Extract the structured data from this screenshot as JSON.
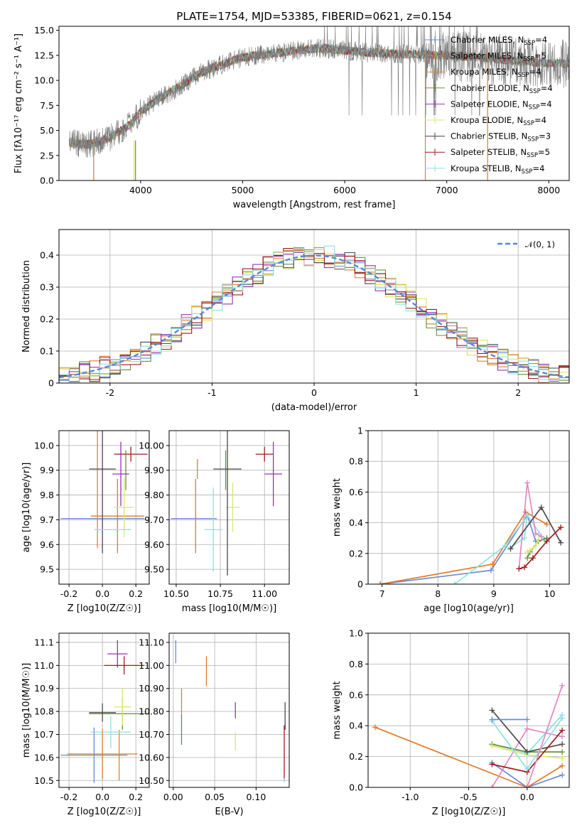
{
  "colors": [
    "#6a8bd6",
    "#e07a2c",
    "#d8882a",
    "#6b8f3a",
    "#9b30b8",
    "#d8e86a",
    "#4a4a4a",
    "#a31a1a",
    "#8fe0e0"
  ],
  "chart_data": [
    {
      "id": "spectrum",
      "type": "line",
      "title": "PLATE=1754, MJD=53385, FIBERID=0621, z=0.154",
      "xlabel": "wavelength [Angstrom, rest frame]",
      "ylabel": "Flux [fλ10⁻¹⁷ erg cm⁻² s⁻¹ A⁻¹]",
      "xlim": [
        3200,
        8200
      ],
      "ylim": [
        0,
        15.4
      ],
      "xticks": [
        4000,
        5000,
        6000,
        7000,
        8000
      ],
      "yticks": [
        0.0,
        2.5,
        5.0,
        7.5,
        10.0,
        12.5,
        15.0
      ],
      "grid": false,
      "legend_position": "upper right",
      "legend": [
        "Chabrier MILES, N_SSP=4",
        "Salpeter MILES, N_SSP=5",
        "Kroupa MILES, N_SSP=4",
        "Chabrier ELODIE, N_SSP=4",
        "Salpeter ELODIE, N_SSP=4",
        "Kroupa ELODIE, N_SSP=4",
        "Chabrier STELIB, N_SSP=3",
        "Salpeter STELIB, N_SSP=5",
        "Kroupa STELIB, N_SSP=4"
      ],
      "data_continuum": {
        "x": [
          3300,
          3500,
          3700,
          3900,
          4000,
          4200,
          4400,
          4600,
          4800,
          5000,
          5200,
          5400,
          5600,
          5800,
          6000,
          6200,
          6400,
          6600,
          6800,
          7000,
          7200,
          7400,
          7600,
          7800,
          8000
        ],
        "y": [
          3.8,
          3.6,
          4.3,
          5.6,
          6.9,
          8.3,
          9.5,
          10.8,
          11.6,
          12.3,
          12.6,
          12.8,
          13.1,
          13.2,
          13.0,
          12.8,
          12.7,
          12.6,
          12.6,
          12.5,
          12.4,
          12.2,
          12.0,
          11.9,
          11.7
        ]
      }
    },
    {
      "id": "residuals",
      "type": "histogram",
      "xlabel": "(data-model)/error",
      "ylabel": "Normed distribution",
      "xlim": [
        -2.5,
        2.5
      ],
      "ylim": [
        0,
        0.48
      ],
      "xticks": [
        -2,
        -1,
        0,
        1,
        2
      ],
      "yticks": [
        0.0,
        0.1,
        0.2,
        0.3,
        0.4
      ],
      "grid": true,
      "legend_position": "upper right",
      "legend": [
        "𝒩(0, 1)"
      ],
      "bin_width": 0.1,
      "gaussian": {
        "mean": 0,
        "sigma": 1
      }
    },
    {
      "id": "age-vs-Z",
      "type": "errorbar",
      "xlabel": "Z [log10(Z/Z☉)]",
      "ylabel": "age  [log10(age/yr)]",
      "xlim": [
        -0.26,
        0.28
      ],
      "ylim": [
        9.44,
        10.06
      ],
      "xticks": [
        -0.2,
        0.0,
        0.2
      ],
      "yticks": [
        9.5,
        9.6,
        9.7,
        9.8,
        9.9,
        10.0
      ],
      "grid": true,
      "points": [
        {
          "x": 0.0,
          "y": 9.705,
          "xerr": 0.25,
          "yerr": 0.0
        },
        {
          "x": 0.09,
          "y": 9.715,
          "xerr": 0.16,
          "yerr": 0.15
        },
        {
          "x": -0.03,
          "y": 9.905,
          "xerr": 0.0,
          "yerr": 0.32
        },
        {
          "x": 0.14,
          "y": 9.9,
          "xerr": 0.0,
          "yerr": 0.08
        },
        {
          "x": 0.11,
          "y": 9.885,
          "xerr": 0.05,
          "yerr": 0.13
        },
        {
          "x": 0.13,
          "y": 9.75,
          "xerr": 0.06,
          "yerr": 0.12
        },
        {
          "x": 0.0,
          "y": 9.905,
          "xerr": 0.08,
          "yerr": 0.34
        },
        {
          "x": 0.17,
          "y": 9.965,
          "xerr": 0.1,
          "yerr": 0.03
        },
        {
          "x": 0.06,
          "y": 9.66,
          "xerr": 0.11,
          "yerr": 0.0
        }
      ]
    },
    {
      "id": "age-vs-mass",
      "type": "errorbar",
      "xlabel": "mass [log10(M/M☉)]",
      "ylabel": "",
      "xlim": [
        10.46,
        11.14
      ],
      "ylim": [
        9.44,
        10.06
      ],
      "xticks": [
        10.5,
        10.75,
        11.0
      ],
      "yticks": [
        9.5,
        9.6,
        9.7,
        9.8,
        9.9,
        10.0
      ],
      "grid": true,
      "points": [
        {
          "x": 10.6,
          "y": 9.705,
          "xerr": 0.13,
          "yerr": 0.0
        },
        {
          "x": 10.61,
          "y": 9.715,
          "xerr": 0.0,
          "yerr": 0.15
        },
        {
          "x": 10.62,
          "y": 9.905,
          "xerr": 0.0,
          "yerr": 0.04
        },
        {
          "x": 10.78,
          "y": 9.9,
          "xerr": 0.0,
          "yerr": 0.08
        },
        {
          "x": 11.05,
          "y": 9.885,
          "xerr": 0.05,
          "yerr": 0.13
        },
        {
          "x": 10.82,
          "y": 9.75,
          "xerr": 0.04,
          "yerr": 0.1
        },
        {
          "x": 10.79,
          "y": 9.905,
          "xerr": 0.08,
          "yerr": 0.43
        },
        {
          "x": 11.0,
          "y": 9.965,
          "xerr": 0.05,
          "yerr": 0.03
        },
        {
          "x": 10.71,
          "y": 9.66,
          "xerr": 0.05,
          "yerr": 0.17
        }
      ]
    },
    {
      "id": "sfh-age",
      "type": "line",
      "xlabel": "age  [log10(age/yr)]",
      "ylabel": "mass weight",
      "xlim": [
        6.75,
        10.35
      ],
      "ylim": [
        0,
        1
      ],
      "xticks": [
        7,
        8,
        9,
        10
      ],
      "yticks": [
        0.0,
        0.2,
        0.4,
        0.6,
        0.8,
        1.0
      ],
      "grid": true,
      "series": [
        {
          "x": [
            6.97,
            8.95,
            9.6,
            9.75
          ],
          "y": [
            0.0,
            0.09,
            0.45,
            0.28
          ]
        },
        {
          "x": [
            6.97,
            8.98,
            9.57,
            9.95
          ],
          "y": [
            0.0,
            0.13,
            0.47,
            0.39
          ]
        },
        {
          "x": [
            9.3,
            9.55,
            9.6,
            9.9
          ],
          "y": [
            0.24,
            0.3,
            0.45,
            0.29
          ]
        },
        {
          "x": [
            9.6,
            9.65,
            9.8,
            9.95
          ],
          "y": [
            0.17,
            0.21,
            0.28,
            0.3
          ]
        },
        {
          "x": [
            9.45,
            9.6,
            9.75,
            9.85
          ],
          "y": [
            0.1,
            0.66,
            0.33,
            0.31
          ]
        },
        {
          "x": [
            9.6,
            9.65,
            9.75,
            9.8
          ],
          "y": [
            0.21,
            0.22,
            0.25,
            0.29
          ]
        },
        {
          "x": [
            9.3,
            9.85,
            10.2
          ],
          "y": [
            0.23,
            0.5,
            0.27
          ]
        },
        {
          "x": [
            9.45,
            9.55,
            9.7,
            9.95,
            10.2
          ],
          "y": [
            0.1,
            0.11,
            0.17,
            0.28,
            0.37
          ]
        },
        {
          "x": [
            8.3,
            9.2,
            9.55
          ],
          "y": [
            0.0,
            0.25,
            0.42
          ]
        }
      ]
    },
    {
      "id": "mass-vs-Z",
      "type": "errorbar",
      "xlabel": "Z [log10(Z/Z☉)]",
      "ylabel": "mass [log10(M/M☉)]",
      "xlim": [
        -0.26,
        0.28
      ],
      "ylim": [
        10.47,
        11.14
      ],
      "xticks": [
        -0.2,
        0.0,
        0.2
      ],
      "yticks": [
        10.5,
        10.6,
        10.7,
        10.8,
        10.9,
        11.0,
        11.1
      ],
      "grid": true,
      "points": [
        {
          "x": -0.05,
          "y": 10.61,
          "xerr": 0.2,
          "yerr": 0.12
        },
        {
          "x": 0.0,
          "y": 10.615,
          "xerr": 0.21,
          "yerr": 0.11
        },
        {
          "x": 0.1,
          "y": 10.61,
          "xerr": 0.0,
          "yerr": 0.11
        },
        {
          "x": 0.12,
          "y": 10.79,
          "xerr": 0.2,
          "yerr": 0.07
        },
        {
          "x": 0.09,
          "y": 11.05,
          "xerr": 0.06,
          "yerr": 0.06
        },
        {
          "x": 0.12,
          "y": 10.82,
          "xerr": 0.05,
          "yerr": 0.08
        },
        {
          "x": 0.0,
          "y": 10.795,
          "xerr": 0.08,
          "yerr": 0.04
        },
        {
          "x": 0.13,
          "y": 11.0,
          "xerr": 0.12,
          "yerr": 0.04
        },
        {
          "x": 0.05,
          "y": 10.71,
          "xerr": 0.12,
          "yerr": 0.07
        }
      ]
    },
    {
      "id": "mass-vs-EBV",
      "type": "errorbar",
      "xlabel": "E(B-V)",
      "ylabel": "",
      "xlim": [
        -0.005,
        0.14
      ],
      "ylim": [
        10.47,
        11.14
      ],
      "xticks": [
        0.0,
        0.05,
        0.1
      ],
      "yticks": [
        10.5,
        10.6,
        10.7,
        10.8,
        10.9,
        11.0,
        11.1
      ],
      "grid": true,
      "points": [
        {
          "x": 0.003,
          "y": 11.06,
          "xerr": 0.0,
          "yerr": 0.05
        },
        {
          "x": 0.04,
          "y": 10.975,
          "xerr": 0.0,
          "yerr": 0.065
        },
        {
          "x": 0.01,
          "y": 10.84,
          "xerr": 0.0,
          "yerr": 0.06
        },
        {
          "x": 0.01,
          "y": 10.72,
          "xerr": 0.0,
          "yerr": 0.065
        },
        {
          "x": 0.075,
          "y": 10.805,
          "xerr": 0.0,
          "yerr": 0.035
        },
        {
          "x": 0.075,
          "y": 10.67,
          "xerr": 0.0,
          "yerr": 0.04
        },
        {
          "x": 0.135,
          "y": 10.78,
          "xerr": 0.0,
          "yerr": 0.06
        },
        {
          "x": 0.134,
          "y": 10.62,
          "xerr": 0.0,
          "yerr": 0.12
        },
        {
          "x": 0.134,
          "y": 10.5,
          "xerr": 0.0,
          "yerr": 0.01
        }
      ]
    },
    {
      "id": "sfh-Z",
      "type": "line",
      "xlabel": "Z [log10(Z/Z☉)]",
      "ylabel": "mass weight",
      "xlim": [
        -1.36,
        0.36
      ],
      "ylim": [
        0,
        1
      ],
      "xticks": [
        -1.0,
        -0.5,
        0.0
      ],
      "yticks": [
        0.0,
        0.2,
        0.4,
        0.6,
        0.8,
        1.0
      ],
      "grid": true,
      "series": [
        {
          "x": [
            -0.3,
            0.0,
            0.3
          ],
          "y": [
            0.16,
            0.0,
            0.08
          ]
        },
        {
          "x": [
            -1.3,
            0.0,
            0.3
          ],
          "y": [
            0.39,
            0.0,
            0.14
          ]
        },
        {
          "x": [
            -0.3,
            0.0,
            0.3
          ],
          "y": [
            0.28,
            0.22,
            0.47
          ]
        },
        {
          "x": [
            -0.3,
            0.0,
            0.3
          ],
          "y": [
            0.28,
            0.23,
            0.23
          ]
        },
        {
          "x": [
            -0.3,
            0.0,
            0.3
          ],
          "y": [
            0.0,
            0.38,
            0.33
          ]
        },
        {
          "x": [
            -0.3,
            0.0,
            0.3
          ],
          "y": [
            0.27,
            0.21,
            0.19
          ]
        },
        {
          "x": [
            -0.3,
            0.0,
            0.3
          ],
          "y": [
            0.5,
            0.23,
            0.28
          ]
        },
        {
          "x": [
            -0.3,
            0.0,
            0.3
          ],
          "y": [
            0.15,
            0.1,
            0.37
          ]
        },
        {
          "x": [
            -0.3,
            0.0,
            0.3
          ],
          "y": [
            0.43,
            0.12,
            0.45
          ]
        },
        {
          "x": [
            -0.3,
            0.0
          ],
          "y": [
            0.44,
            0.44
          ]
        },
        {
          "x": [
            0.0,
            0.3
          ],
          "y": [
            0.0,
            0.66
          ]
        }
      ]
    }
  ]
}
